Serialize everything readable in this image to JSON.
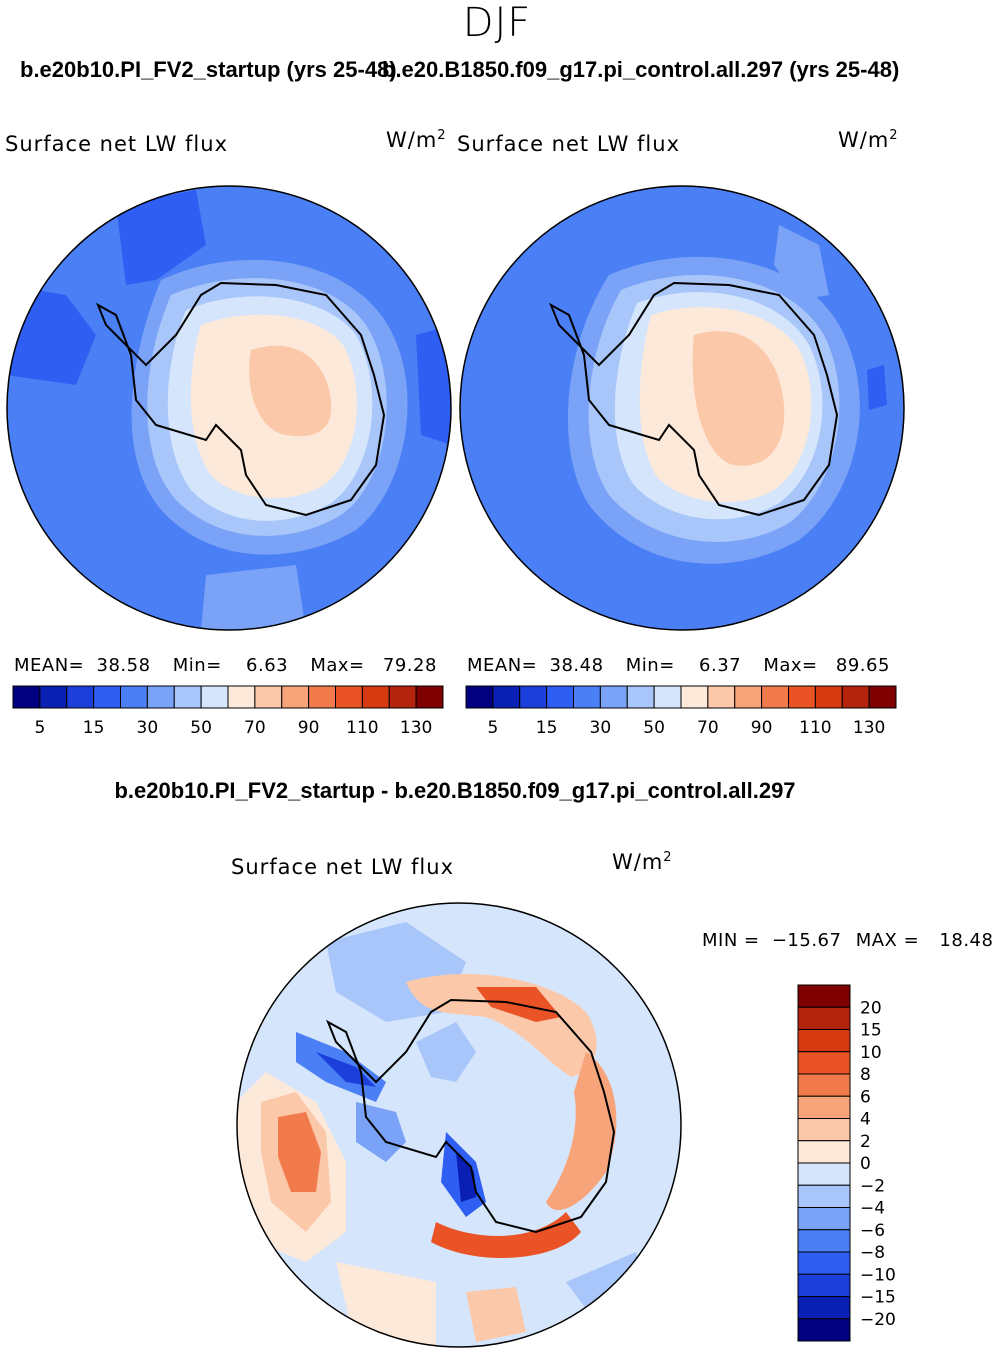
{
  "season": "DJF",
  "headers": {
    "left_case": "b.e20b10.PI_FV2_startup (yrs 25-48)",
    "right_case": "b.e20.B1850.f09_g17.pi_control.all.297 (yrs 25-48)",
    "difference": "b.e20b10.PI_FV2_startup - b.e20.B1850.f09_g17.pi_control.all.297"
  },
  "chart_data": [
    {
      "type": "contour-map",
      "projection": "south-polar-stereographic",
      "case": "b.e20b10.PI_FV2_startup (yrs 25-48)",
      "title": "Surface net LW flux",
      "units": "W/m",
      "units_exp": "2",
      "stats": {
        "mean_label": "MEAN=",
        "mean": "38.58",
        "min_label": "Min=",
        "min": "6.63",
        "max_label": "Max=",
        "max": "79.28"
      },
      "colorbar": {
        "levels": [
          5,
          10,
          15,
          20,
          30,
          40,
          50,
          60,
          70,
          80,
          90,
          100,
          110,
          120,
          130
        ],
        "tick_labels": [
          "5",
          "15",
          "30",
          "50",
          "70",
          "90",
          "110",
          "130"
        ],
        "colors": [
          "#000080",
          "#0a1fb4",
          "#1c3fdc",
          "#2e5ef2",
          "#4a7ff5",
          "#7aa3f7",
          "#a9c6fa",
          "#d5e5fc",
          "#fde9d9",
          "#fbc9a9",
          "#f8a47a",
          "#f27b4d",
          "#ea5325",
          "#d53a10",
          "#b4230b",
          "#7f0000"
        ]
      }
    },
    {
      "type": "contour-map",
      "projection": "south-polar-stereographic",
      "case": "b.e20.B1850.f09_g17.pi_control.all.297 (yrs 25-48)",
      "title": "Surface net LW flux",
      "units": "W/m",
      "units_exp": "2",
      "stats": {
        "mean_label": "MEAN=",
        "mean": "38.48",
        "min_label": "Min=",
        "min": "6.37",
        "max_label": "Max=",
        "max": "89.65"
      },
      "colorbar": {
        "levels": [
          5,
          10,
          15,
          20,
          30,
          40,
          50,
          60,
          70,
          80,
          90,
          100,
          110,
          120,
          130
        ],
        "tick_labels": [
          "5",
          "15",
          "30",
          "50",
          "70",
          "90",
          "110",
          "130"
        ],
        "colors": [
          "#000080",
          "#0a1fb4",
          "#1c3fdc",
          "#2e5ef2",
          "#4a7ff5",
          "#7aa3f7",
          "#a9c6fa",
          "#d5e5fc",
          "#fde9d9",
          "#fbc9a9",
          "#f8a47a",
          "#f27b4d",
          "#ea5325",
          "#d53a10",
          "#b4230b",
          "#7f0000"
        ]
      }
    },
    {
      "type": "contour-map",
      "projection": "south-polar-stereographic",
      "case": "difference",
      "title": "Surface net LW flux",
      "units": "W/m",
      "units_exp": "2",
      "stats": {
        "min_label": "MIN =",
        "min": "−15.67",
        "max_label": "MAX =",
        "max": "18.48"
      },
      "colorbar": {
        "levels": [
          20,
          15,
          10,
          8,
          6,
          4,
          2,
          0,
          -2,
          -4,
          -6,
          -8,
          -10,
          -15,
          -20
        ],
        "tick_labels": [
          "20",
          "15",
          "10",
          "8",
          "6",
          "4",
          "2",
          "0",
          "−2",
          "−4",
          "−6",
          "−8",
          "−10",
          "−15",
          "−20"
        ],
        "colors": [
          "#7f0000",
          "#b4230b",
          "#d53a10",
          "#ea5325",
          "#f27b4d",
          "#f8a47a",
          "#fbc9a9",
          "#fde9d9",
          "#d5e5fc",
          "#a9c6fa",
          "#7aa3f7",
          "#4a7ff5",
          "#2e5ef2",
          "#1c3fdc",
          "#0a1fb4",
          "#000080"
        ]
      }
    }
  ]
}
